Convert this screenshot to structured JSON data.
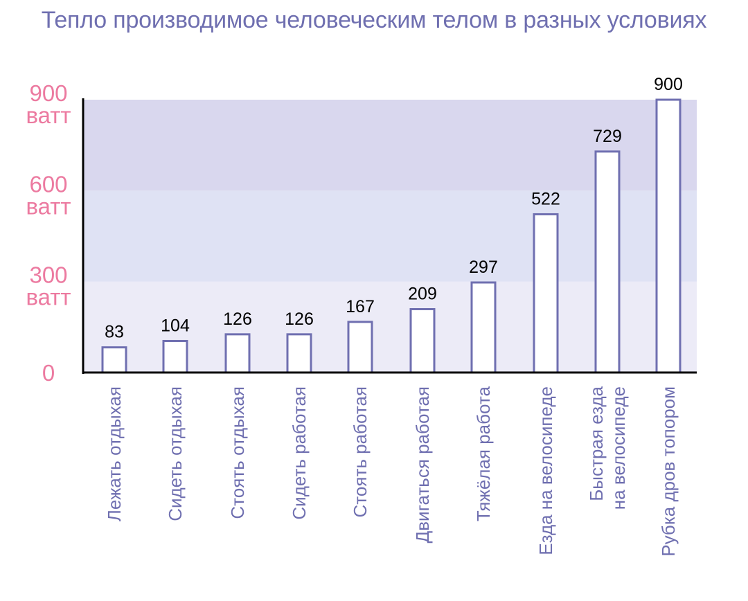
{
  "chart_data": {
    "type": "bar",
    "title": "Тепло производимое человеческим телом в разных условиях",
    "xlabel": "",
    "ylabel": "",
    "ylim": [
      0,
      900
    ],
    "y_ticks": [
      {
        "value": 0,
        "lines": [
          "0"
        ]
      },
      {
        "value": 300,
        "lines": [
          "300",
          "ватт"
        ]
      },
      {
        "value": 600,
        "lines": [
          "600",
          "ватт"
        ]
      },
      {
        "value": 900,
        "lines": [
          "900",
          "ватт"
        ]
      }
    ],
    "bands": [
      {
        "from": 0,
        "to": 300,
        "color": "#ecebf7"
      },
      {
        "from": 300,
        "to": 600,
        "color": "#dfe2f4"
      },
      {
        "from": 600,
        "to": 900,
        "color": "#d9d7ee"
      }
    ],
    "categories": [
      [
        "Лежать отдыхая"
      ],
      [
        "Сидеть отдыхая"
      ],
      [
        "Стоять отдыхая"
      ],
      [
        "Сидеть работая"
      ],
      [
        "Стоять работая"
      ],
      [
        "Двигаться работая"
      ],
      [
        "Тяжёлая работа"
      ],
      [
        "Езда на велосипеде"
      ],
      [
        "Быстрая езда",
        "на велосипеде"
      ],
      [
        "Рубка дров топором"
      ]
    ],
    "values": [
      83,
      104,
      126,
      126,
      167,
      209,
      297,
      522,
      729,
      900
    ],
    "colors": {
      "bar_stroke": "#6f6fb0",
      "bar_fill": "#ffffff",
      "axis": "#000000",
      "tick_text": "#ec7aa0",
      "category_text": "#6f6fb0",
      "title_text": "#6f6fb0"
    },
    "grid": false,
    "legend": "none"
  }
}
